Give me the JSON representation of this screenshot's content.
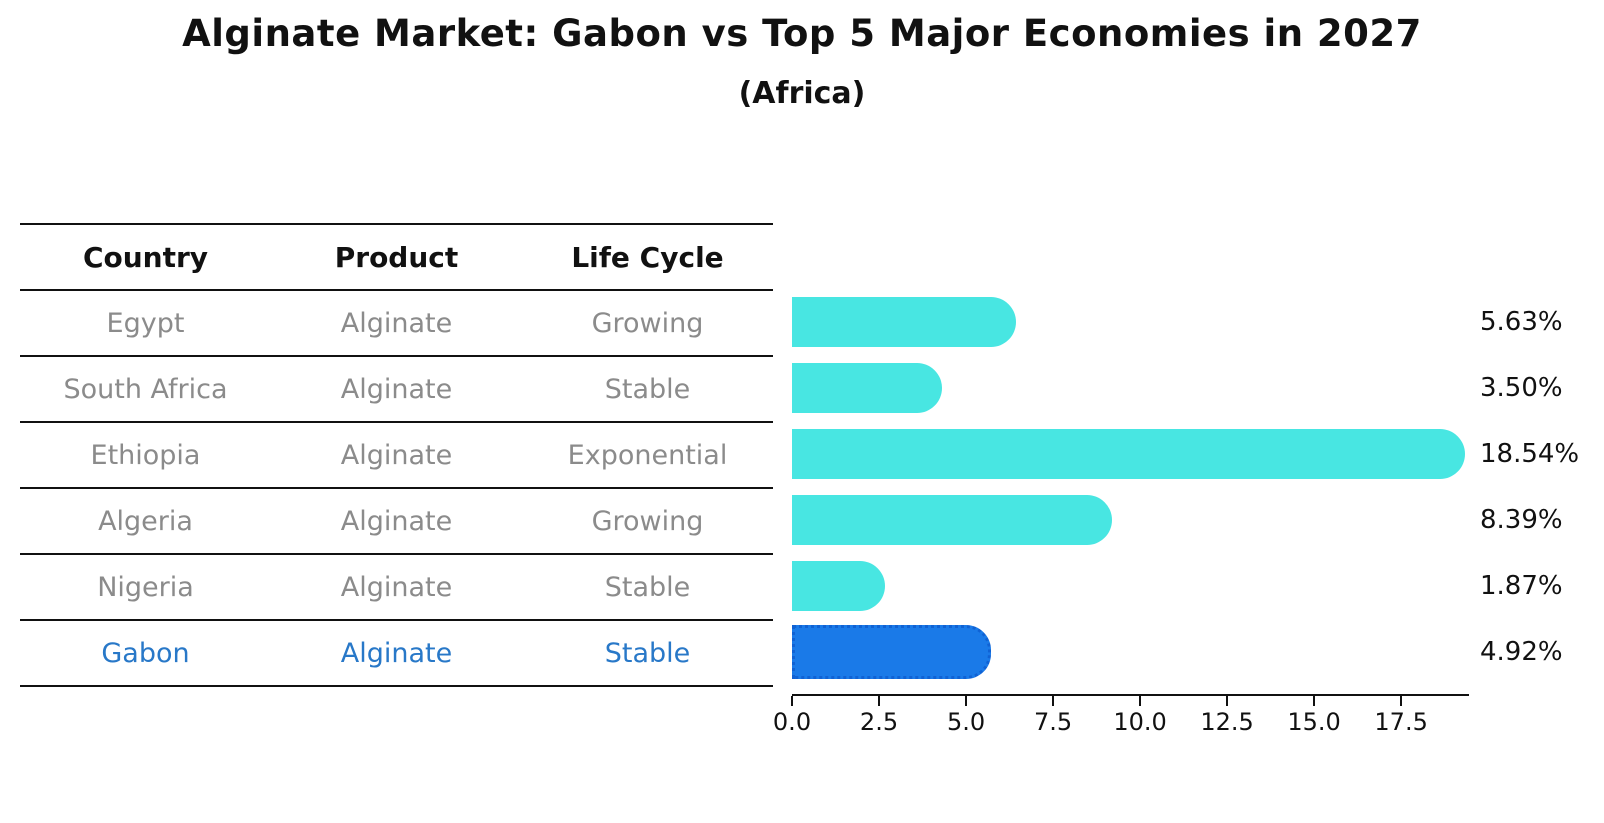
{
  "title": "Alginate Market: Gabon vs Top 5 Major Economies in 2027",
  "subtitle": "(Africa)",
  "colors": {
    "bar_default": "#48e6e2",
    "bar_highlight": "#1a7ae8",
    "bar_highlight_border": "#1062d4",
    "table_text": "#8b8b8b",
    "highlight_text": "#2878c8",
    "axis_and_lines": "#111111"
  },
  "table": {
    "headers": [
      "Country",
      "Product",
      "Life Cycle"
    ],
    "rows": [
      {
        "country": "Egypt",
        "product": "Alginate",
        "life_cycle": "Growing",
        "highlight": false
      },
      {
        "country": "South Africa",
        "product": "Alginate",
        "life_cycle": "Stable",
        "highlight": false
      },
      {
        "country": "Ethiopia",
        "product": "Alginate",
        "life_cycle": "Exponential",
        "highlight": false
      },
      {
        "country": "Algeria",
        "product": "Alginate",
        "life_cycle": "Growing",
        "highlight": false
      },
      {
        "country": "Nigeria",
        "product": "Alginate",
        "life_cycle": "Stable",
        "highlight": false
      },
      {
        "country": "Gabon",
        "product": "Alginate",
        "life_cycle": "Stable",
        "highlight": true
      }
    ]
  },
  "chart_data": {
    "type": "bar",
    "orientation": "horizontal",
    "title": "Alginate Market: Gabon vs Top 5 Major Economies in 2027",
    "subtitle": "(Africa)",
    "categories": [
      "Egypt",
      "South Africa",
      "Ethiopia",
      "Algeria",
      "Nigeria",
      "Gabon"
    ],
    "values": [
      5.63,
      3.5,
      18.54,
      8.39,
      1.87,
      4.92
    ],
    "value_labels": [
      "5.63%",
      "3.50%",
      "18.54%",
      "8.39%",
      "1.87%",
      "4.92%"
    ],
    "highlight_index": 5,
    "xlim": [
      0,
      19.45
    ],
    "x_ticks": [
      0.0,
      2.5,
      5.0,
      7.5,
      10.0,
      12.5,
      15.0,
      17.5
    ],
    "x_tick_labels": [
      "0.0",
      "2.5",
      "5.0",
      "7.5",
      "10.0",
      "12.5",
      "15.0",
      "17.5"
    ],
    "grid": false,
    "legend": false
  }
}
